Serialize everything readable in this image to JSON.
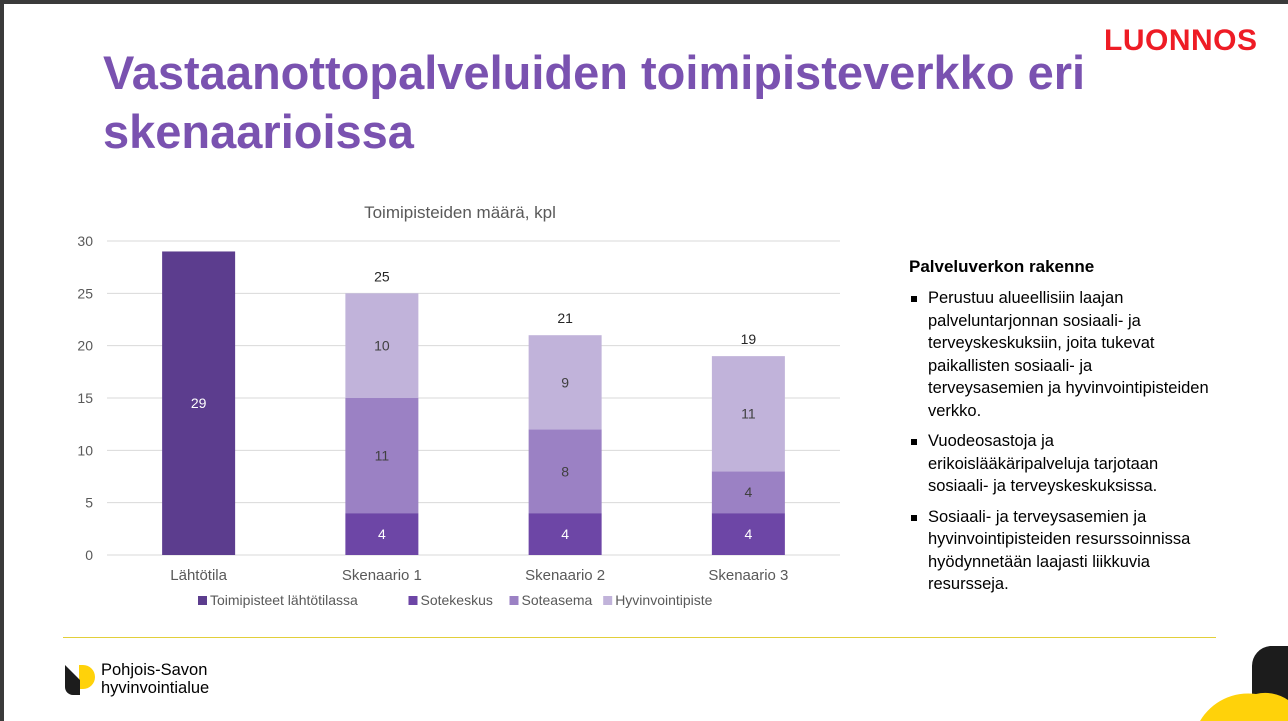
{
  "slide": {
    "title": "Vastaanottopalveluiden toimipisteverkko eri skenaarioissa",
    "stamp": "LUONNOS",
    "side_panel": {
      "heading": "Palveluverkon rakenne",
      "bullets": [
        "Perustuu alueellisiin laajan palveluntarjonnan sosiaali- ja terveyskeskuksiin, joita tukevat paikallisten sosiaali- ja terveysasemien ja hyvinvointipisteiden verkko.",
        "Vuodeosastoja ja erikoislääkäripalveluja tarjotaan sosiaali- ja terveyskeskuksissa.",
        "Sosiaali- ja terveysasemien ja hyvinvointipisteiden resurssoinnissa hyödynnetään laajasti liikkuvia resursseja."
      ]
    },
    "logo": {
      "line1": "Pohjois-Savon",
      "line2": "hyvinvointialue"
    }
  },
  "colors": {
    "title": "#7a52b0",
    "stamp": "#ee1c25",
    "footer_line": "#e2cf3a",
    "logo_yellow": "#ffd20a",
    "logo_dark": "#1c1c1c"
  },
  "chart_data": {
    "type": "bar",
    "stacked": true,
    "title": "Toimipisteiden määrä, kpl",
    "categories": [
      "Lähtötila",
      "Skenaario 1",
      "Skenaario 2",
      "Skenaario 3"
    ],
    "series": [
      {
        "name": "Toimipisteet lähtötilassa",
        "values": [
          29,
          null,
          null,
          null
        ],
        "color": "#5c3d8e"
      },
      {
        "name": "Sotekeskus",
        "values": [
          null,
          4,
          4,
          4
        ],
        "color": "#6d46a6"
      },
      {
        "name": "Soteasema",
        "values": [
          null,
          11,
          8,
          4
        ],
        "color": "#9b81c4"
      },
      {
        "name": "Hyvinvointipiste",
        "values": [
          null,
          10,
          9,
          11
        ],
        "color": "#c1b3da"
      }
    ],
    "totals": [
      null,
      25,
      21,
      19
    ],
    "ylim": [
      0,
      30
    ],
    "yticks": [
      0,
      5,
      10,
      15,
      20,
      25,
      30
    ],
    "grid": true,
    "legend": "bottom",
    "xlabel": "",
    "ylabel": ""
  }
}
